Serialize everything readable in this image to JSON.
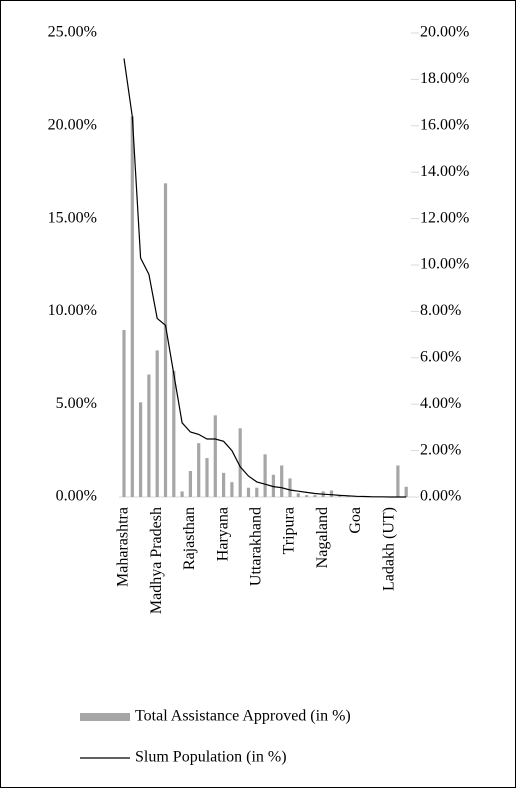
{
  "chart_data": {
    "type": "bar-line",
    "categories": [
      "Maharashtra",
      null,
      null,
      null,
      "Madhya Pradesh",
      null,
      null,
      null,
      "Rajasthan",
      null,
      null,
      null,
      "Haryana",
      null,
      null,
      null,
      "Uttarakhand",
      null,
      null,
      null,
      "Tripura",
      null,
      null,
      null,
      "Nagaland",
      null,
      null,
      null,
      "Goa",
      null,
      null,
      null,
      "Ladakh (UT)",
      null,
      null
    ],
    "series": [
      {
        "name": "Total Assistance Approved (in %)",
        "type": "bar",
        "color": "#a6a6a6",
        "axis": "y",
        "values": [
          9.0,
          20.5,
          5.1,
          6.6,
          7.9,
          16.9,
          6.8,
          0.3,
          1.4,
          2.9,
          2.1,
          4.4,
          1.3,
          0.8,
          3.7,
          0.5,
          0.5,
          2.3,
          1.2,
          1.7,
          1.0,
          0.2,
          0.1,
          0.1,
          0.3,
          0.35,
          0.05,
          0.05,
          0.02,
          0.02,
          0.01,
          0.01,
          0.01,
          1.7,
          0.55
        ]
      },
      {
        "name": "Slum Population (in %)",
        "type": "line",
        "color": "#000000",
        "axis": "y2",
        "values": [
          18.9,
          16.4,
          10.3,
          9.6,
          7.7,
          7.4,
          5.3,
          3.2,
          2.8,
          2.7,
          2.5,
          2.5,
          2.4,
          2.0,
          1.3,
          0.9,
          0.65,
          0.55,
          0.45,
          0.4,
          0.3,
          0.25,
          0.2,
          0.15,
          0.12,
          0.1,
          0.07,
          0.05,
          0.03,
          0.02,
          0.01,
          0.01,
          0,
          0,
          0
        ]
      }
    ],
    "ylim": [
      0,
      25
    ],
    "yticks": [
      {
        "value": 0,
        "label": "0.00%"
      },
      {
        "value": 5,
        "label": "5.00%"
      },
      {
        "value": 10,
        "label": "10.00%"
      },
      {
        "value": 15,
        "label": "15.00%"
      },
      {
        "value": 20,
        "label": "20.00%"
      },
      {
        "value": 25,
        "label": "25.00%"
      }
    ],
    "y2lim": [
      0,
      20
    ],
    "y2ticks": [
      {
        "value": 0,
        "label": "0.00%"
      },
      {
        "value": 2,
        "label": "2.00%"
      },
      {
        "value": 4,
        "label": "4.00%"
      },
      {
        "value": 6,
        "label": "6.00%"
      },
      {
        "value": 8,
        "label": "8.00%"
      },
      {
        "value": 10,
        "label": "10.00%"
      },
      {
        "value": 12,
        "label": "12.00%"
      },
      {
        "value": 14,
        "label": "14.00%"
      },
      {
        "value": 16,
        "label": "16.00%"
      },
      {
        "value": 18,
        "label": "18.00%"
      },
      {
        "value": 20,
        "label": "20.00%"
      }
    ]
  }
}
